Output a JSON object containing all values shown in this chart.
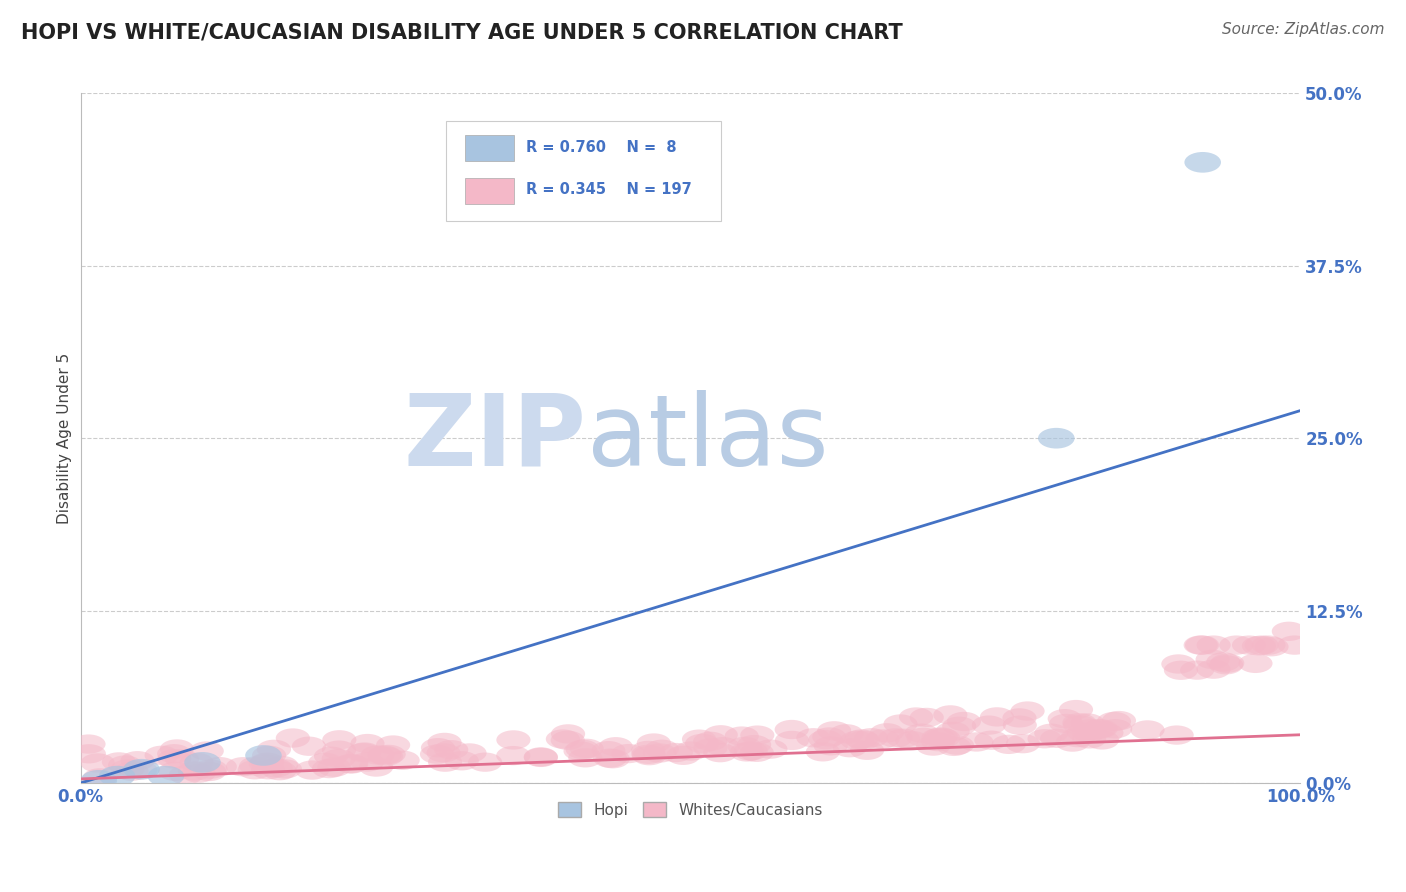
{
  "title": "HOPI VS WHITE/CAUCASIAN DISABILITY AGE UNDER 5 CORRELATION CHART",
  "source": "Source: ZipAtlas.com",
  "ylabel": "Disability Age Under 5",
  "ytick_labels": [
    "0.0%",
    "12.5%",
    "25.0%",
    "37.5%",
    "50.0%"
  ],
  "ytick_values": [
    0.0,
    12.5,
    25.0,
    37.5,
    50.0
  ],
  "xlim": [
    0.0,
    100.0
  ],
  "ylim": [
    0.0,
    50.0
  ],
  "hopi_R": 0.76,
  "hopi_N": 8,
  "white_R": 0.345,
  "white_N": 197,
  "hopi_color": "#a8c4e0",
  "white_color": "#f4b8c8",
  "hopi_line_color": "#4472c4",
  "white_line_color": "#e07090",
  "legend_label_hopi": "Hopi",
  "legend_label_white": "Whites/Caucasians",
  "watermark_zip": "ZIP",
  "watermark_atlas": "atlas",
  "watermark_color": "#d0dff0",
  "background_color": "#ffffff",
  "title_color": "#222222",
  "title_fontsize": 15,
  "source_fontsize": 11,
  "axis_label_color": "#4472c4",
  "ytick_color": "#4472c4",
  "grid_color": "#cccccc",
  "hopi_line_x": [
    0,
    100
  ],
  "hopi_line_y": [
    0.0,
    27.0
  ],
  "white_line_x": [
    0,
    100
  ],
  "white_line_y": [
    0.3,
    3.5
  ]
}
